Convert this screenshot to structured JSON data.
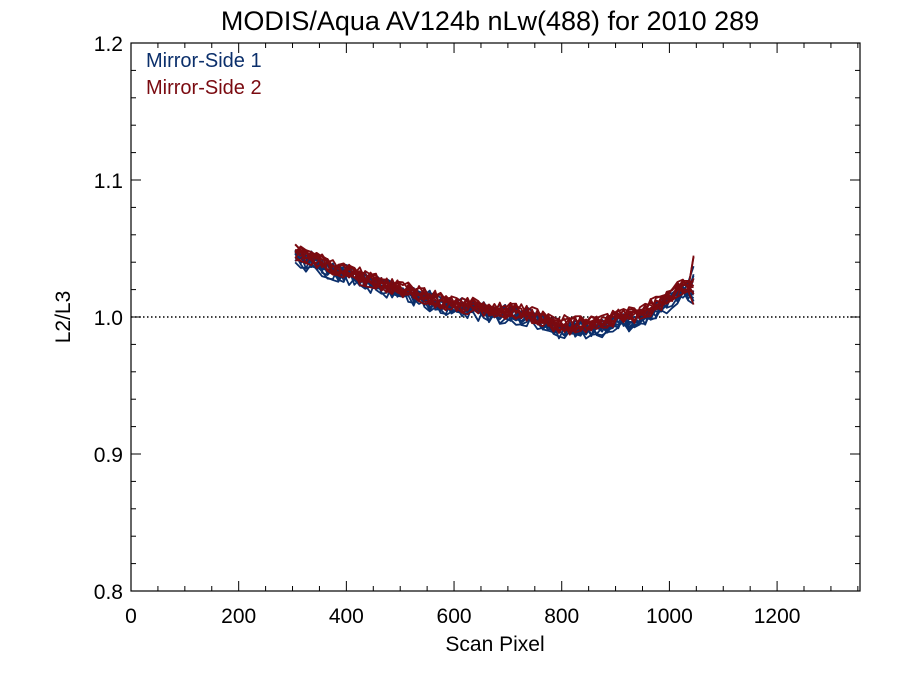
{
  "chart_data": {
    "type": "line",
    "title": "MODIS/Aqua AV124b nLw(488) for 2010 289",
    "xlabel": "Scan Pixel",
    "ylabel": "L2/L3",
    "xlim": [
      0,
      1354
    ],
    "ylim": [
      0.8,
      1.2
    ],
    "xticks": [
      0,
      200,
      400,
      600,
      800,
      1000,
      1200
    ],
    "xtick_labels": [
      "0",
      "200",
      "400",
      "600",
      "800",
      "1000",
      "1200"
    ],
    "yticks": [
      0.8,
      0.9,
      1.0,
      1.1,
      1.2
    ],
    "ytick_labels": [
      "0.8",
      "0.9",
      "1.0",
      "1.1",
      "1.2"
    ],
    "x_minor_step": 50,
    "y_minor_step": 0.02,
    "reference_line": {
      "y": 1.0,
      "style": "dotted"
    },
    "legend_position": "top-left",
    "colors": {
      "mirror_side_1": "#0b2f6b",
      "mirror_side_2": "#7a0a10"
    },
    "x": [
      305,
      340,
      380,
      420,
      460,
      500,
      540,
      580,
      620,
      660,
      700,
      740,
      780,
      820,
      860,
      900,
      940,
      980,
      1020,
      1050
    ],
    "series": [
      {
        "name": "Mirror-Side 1",
        "values": [
          1.044,
          1.039,
          1.033,
          1.028,
          1.023,
          1.018,
          1.014,
          1.008,
          1.006,
          1.004,
          1.002,
          1.0,
          0.992,
          0.99,
          0.991,
          0.996,
          0.998,
          1.006,
          1.016,
          1.02
        ]
      },
      {
        "name": "Mirror-Side 2",
        "values": [
          1.046,
          1.041,
          1.035,
          1.029,
          1.024,
          1.019,
          1.015,
          1.009,
          1.007,
          1.005,
          1.003,
          1.001,
          0.994,
          0.992,
          0.993,
          0.998,
          1.0,
          1.008,
          1.019,
          1.024
        ]
      }
    ]
  }
}
